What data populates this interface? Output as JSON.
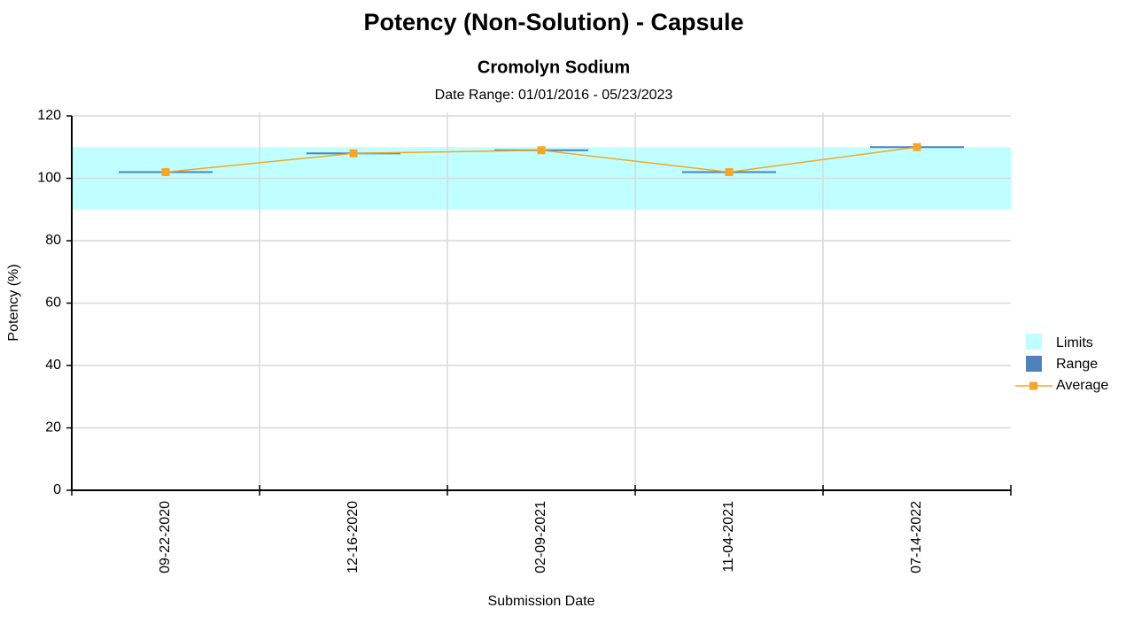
{
  "chart_data": {
    "type": "line",
    "title": "Potency (Non-Solution)  - Capsule",
    "subtitle": "Cromolyn Sodium",
    "date_range": "Date Range: 01/01/2016 - 05/23/2023",
    "x_label": "Submission Date",
    "y_label": "Potency (%)",
    "categories": [
      "09-22-2020",
      "12-16-2020",
      "02-09-2021",
      "11-04-2021",
      "07-14-2022"
    ],
    "limits": {
      "name": "Limits",
      "color": "#bfffff",
      "low": 90,
      "high": 110
    },
    "range": {
      "name": "Range",
      "color": "#4f81bd",
      "low": [
        102,
        108,
        109,
        102,
        110
      ],
      "high": [
        102,
        108,
        109,
        102,
        110
      ]
    },
    "series": [
      {
        "name": "Average",
        "color": "#f5a623",
        "values": [
          102,
          108,
          109,
          102,
          110
        ]
      }
    ],
    "ylim": [
      0,
      120
    ],
    "yticks": [
      0,
      20,
      40,
      60,
      80,
      100,
      120
    ],
    "grid": true,
    "legend": "right"
  }
}
